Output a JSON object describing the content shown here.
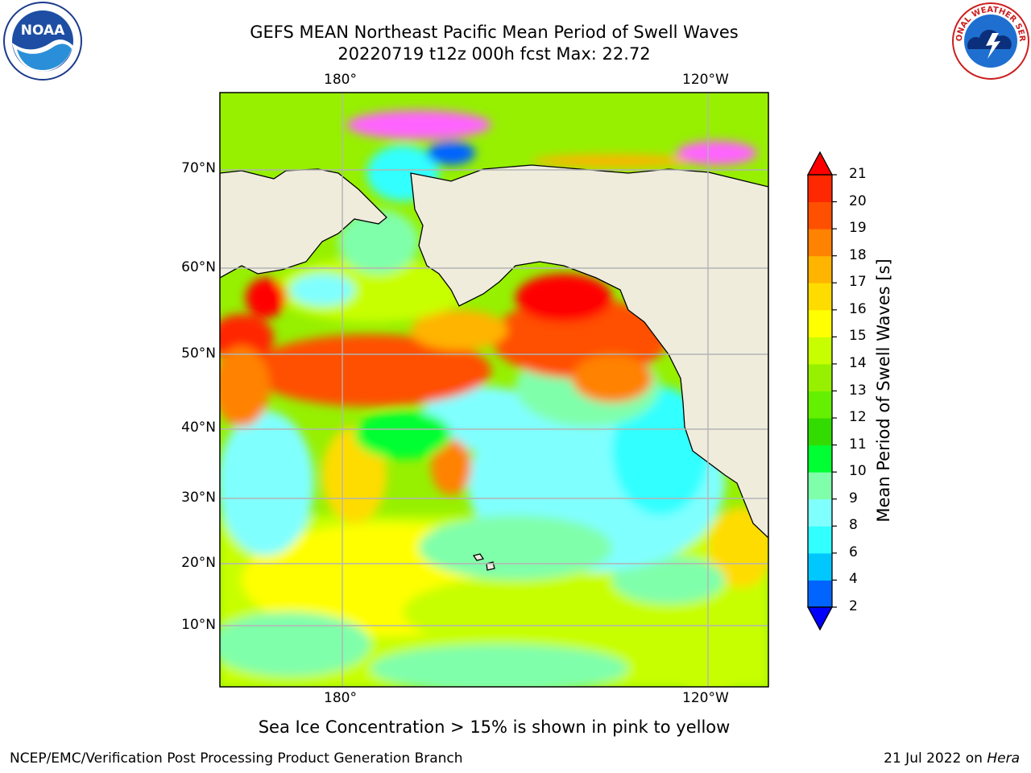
{
  "title": {
    "line1": "GEFS MEAN Northeast Pacific Mean Period of Swell Waves",
    "line2": "20220719 t12z 000h fcst   Max: 22.72"
  },
  "map": {
    "lon_labels_top": [
      "180°",
      "120°W"
    ],
    "lon_labels_bottom": [
      "180°",
      "120°W"
    ],
    "lat_labels": [
      "70°N",
      "60°N",
      "50°N",
      "40°N",
      "30°N",
      "20°N",
      "10°N"
    ],
    "land_color": "#efecdc",
    "grid_color": "#b4b4b4"
  },
  "colorbar": {
    "label": "Mean Period of Swell Waves [s]",
    "ticks": [
      "2",
      "4",
      "6",
      "8",
      "9",
      "10",
      "11",
      "12",
      "13",
      "14",
      "15",
      "16",
      "17",
      "18",
      "19",
      "20",
      "21"
    ],
    "colors": [
      "#0000ff",
      "#0064ff",
      "#00c8ff",
      "#32ffff",
      "#80ffff",
      "#80ffaa",
      "#00ff32",
      "#32dc00",
      "#64f000",
      "#96f000",
      "#c8ff00",
      "#ffff00",
      "#ffdc00",
      "#ffb400",
      "#ff8200",
      "#ff5000",
      "#ff2800",
      "#ff0000"
    ],
    "over_color": "#ff0000",
    "under_color": "#0000ff"
  },
  "caption": "Sea Ice Concentration > 15% is shown in pink to yellow",
  "footer": {
    "left": "NCEP/EMC/Verification Post Processing Product Generation Branch",
    "date": "21 Jul 2022 on",
    "host": "Hera"
  },
  "logos": {
    "noaa_text": "NOAA",
    "nws_text": "NATIONAL WEATHER SERVICE"
  }
}
